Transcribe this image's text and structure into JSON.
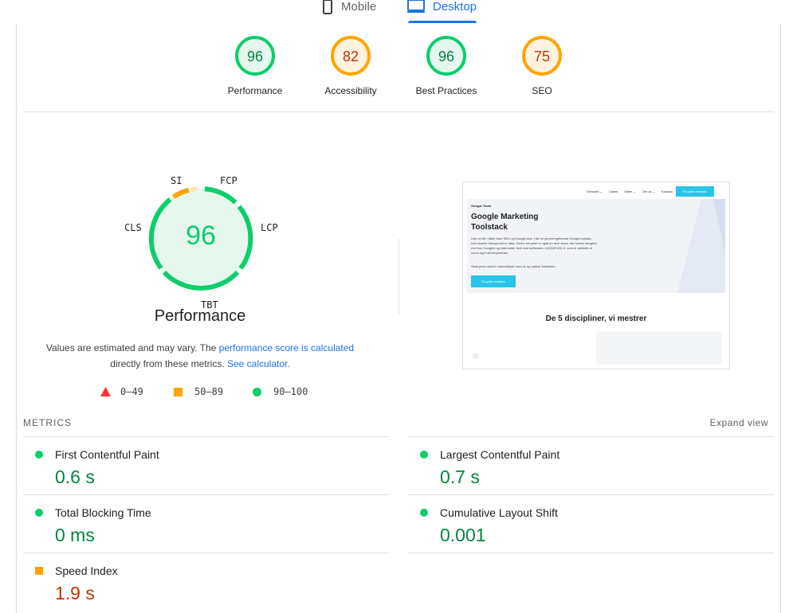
{
  "tabs": {
    "mobile": "Mobile",
    "desktop": "Desktop"
  },
  "gauges": [
    {
      "label": "Performance",
      "score": "96",
      "color": "#0cce6b",
      "fill": "#e6f8ee",
      "text": "#018642"
    },
    {
      "label": "Accessibility",
      "score": "82",
      "color": "#ffa400",
      "fill": "#fff3e0",
      "text": "#c33300"
    },
    {
      "label": "Best Practices",
      "score": "96",
      "color": "#0cce6b",
      "fill": "#e6f8ee",
      "text": "#018642"
    },
    {
      "label": "SEO",
      "score": "75",
      "color": "#ffa400",
      "fill": "#fff3e0",
      "text": "#c33300"
    }
  ],
  "performance": {
    "score": "96",
    "title": "Performance",
    "metric_labels": {
      "si": "SI",
      "fcp": "FCP",
      "lcp": "LCP",
      "tbt": "TBT",
      "cls": "CLS"
    },
    "note_1": "Values are estimated and may vary. The ",
    "note_link_1": "performance score is calculated",
    "note_2": "directly from these metrics. ",
    "note_link_2": "See calculator."
  },
  "legend": {
    "fail": "0–49",
    "average": "50–89",
    "pass": "90–100"
  },
  "screenshot": {
    "nav_items": [
      "Services ⌄",
      "Cases",
      "Viden ⌄",
      "Om os ⌄",
      "Kontakt"
    ],
    "nav_cta": "Få gratis analyse",
    "brand": "Google Tools",
    "hero_title": "Google Marketing Toolstack",
    "hero_body": "Hos os får I både bare SEO og Google Ads. I får en gennemgribende Google-indsats, hvis største fokuspunkt er data. Derfor benytter vi også en tech stack, der række længere end kun Googles og indeholder tech and softwares: LKZZATOOLS, som er udviklet af vores eget developerteam.",
    "hero_body_2": "Skab jeres vækst i samarbejde med os og opleve forskellen.",
    "hero_cta": "Få gratis analyse",
    "section_title": "De 5 discipliner, vi mestrer"
  },
  "metrics": {
    "header": "METRICS",
    "expand": "Expand view",
    "items": [
      {
        "name": "First Contentful Paint",
        "value": "0.6 s",
        "status": "pass"
      },
      {
        "name": "Largest Contentful Paint",
        "value": "0.7 s",
        "status": "pass"
      },
      {
        "name": "Total Blocking Time",
        "value": "0 ms",
        "status": "pass"
      },
      {
        "name": "Cumulative Layout Shift",
        "value": "0.001",
        "status": "pass"
      },
      {
        "name": "Speed Index",
        "value": "1.9 s",
        "status": "average"
      }
    ]
  }
}
